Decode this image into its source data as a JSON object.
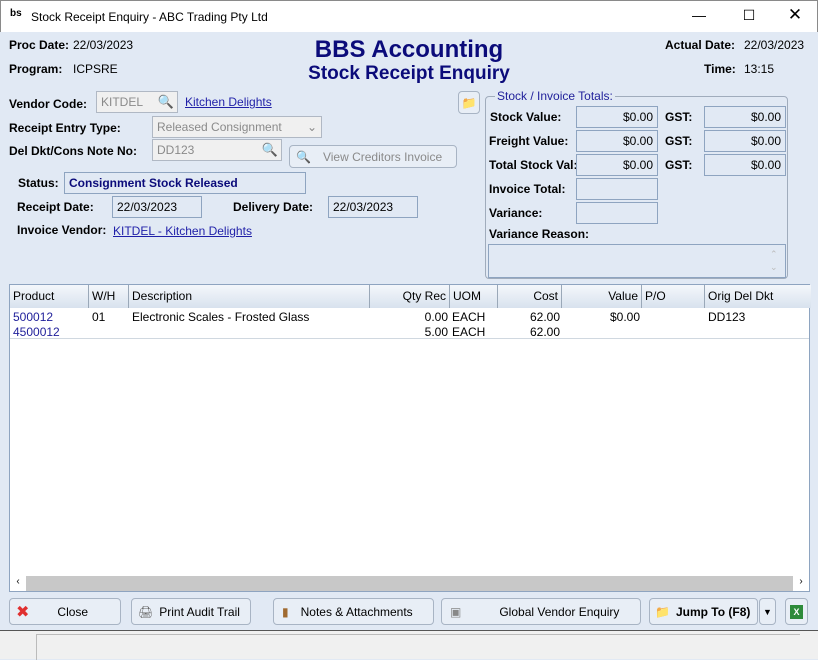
{
  "window": {
    "title": "Stock Receipt Enquiry - ABC Trading Pty Ltd",
    "icon": "bbs-logo-icon"
  },
  "header": {
    "proc_date_label": "Proc Date:",
    "proc_date": "22/03/2023",
    "program_label": "Program:",
    "program": "ICPSRE",
    "app_title": "BBS Accounting",
    "screen_title": "Stock Receipt Enquiry",
    "actual_date_label": "Actual Date:",
    "actual_date": "22/03/2023",
    "time_label": "Time:",
    "time": "13:15"
  },
  "form": {
    "vendor_code_label": "Vendor Code:",
    "vendor_code": "KITDEL",
    "vendor_name": "Kitchen Delights",
    "receipt_type_label": "Receipt Entry Type:",
    "receipt_type": "Released Consignment",
    "del_dkt_label": "Del Dkt/Cons Note No:",
    "del_dkt": "DD123",
    "view_invoice_label": "View Creditors Invoice",
    "status_label": "Status:",
    "status": "Consignment Stock Released",
    "receipt_date_label": "Receipt Date:",
    "receipt_date": "22/03/2023",
    "delivery_date_label": "Delivery Date:",
    "delivery_date": "22/03/2023",
    "invoice_vendor_label": "Invoice Vendor:",
    "invoice_vendor": "KITDEL - Kitchen Delights"
  },
  "totals": {
    "legend": "Stock / Invoice Totals:",
    "stock_value_label": "Stock Value:",
    "stock_value": "$0.00",
    "freight_value_label": "Freight Value:",
    "freight_value": "$0.00",
    "total_stock_label": "Total Stock Val:",
    "total_stock": "$0.00",
    "gst_label": "GST:",
    "gst_stock": "$0.00",
    "gst_freight": "$0.00",
    "gst_total": "$0.00",
    "invoice_total_label": "Invoice Total:",
    "invoice_total": "",
    "variance_label": "Variance:",
    "variance": "",
    "variance_reason_label": "Variance Reason:",
    "variance_reason": ""
  },
  "grid": {
    "columns": [
      "Product",
      "W/H",
      "Description",
      "Qty Rec",
      "UOM",
      "Cost",
      "Value",
      "P/O",
      "Orig Del Dkt"
    ],
    "rows": [
      {
        "product": "500012",
        "wh": "01",
        "description": "Electronic Scales - Frosted Glass",
        "qty": "0.00",
        "uom": "EACH",
        "cost": "62.00",
        "value": "$0.00",
        "po": "",
        "orig": "DD123"
      },
      {
        "product": "4500012",
        "wh": "",
        "description": "",
        "qty": "5.00",
        "uom": "EACH",
        "cost": "62.00",
        "value": "",
        "po": "",
        "orig": ""
      }
    ]
  },
  "buttons": {
    "close": "Close",
    "print": "Print Audit Trail",
    "notes": "Notes & Attachments",
    "global": "Global Vendor Enquiry",
    "jump": "Jump To (F8)"
  },
  "colors": {
    "title_blue": "#0b0b7a",
    "link": "#1f1fa8",
    "background": "#e1e9f4"
  }
}
